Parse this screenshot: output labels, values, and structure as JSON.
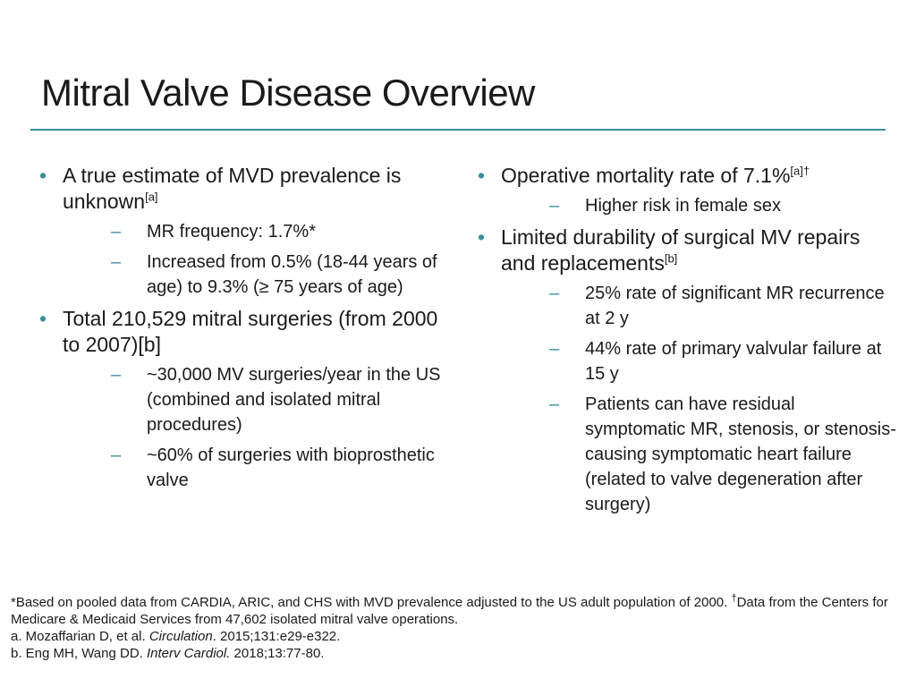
{
  "title": "Mitral Valve Disease Overview",
  "left": {
    "b1_text": "A true estimate of MVD prevalence is unknown",
    "b1_sup": "[a]",
    "b1_sub1": "MR frequency: 1.7%*",
    "b1_sub2": "Increased from 0.5% (18-44 years of age) to 9.3% (≥ 75 years of age)",
    "b2_text": "Total 210,529 mitral surgeries (from 2000 to 2007)[b]",
    "b2_sub1": "~30,000 MV surgeries/year in the US (combined and isolated mitral procedures)",
    "b2_sub2": "~60% of surgeries with bioprosthetic valve"
  },
  "right": {
    "b1_text": "Operative mortality rate of 7.1%",
    "b1_sup": "[a]†",
    "b1_sub1": "Higher risk in female sex",
    "b2_text": "Limited durability of surgical MV repairs and replacements",
    "b2_sup": "[b]",
    "b2_sub1": "25% rate of significant MR recurrence at 2 y",
    "b2_sub2": "44% rate of primary valvular failure at 15 y",
    "b2_sub3": "Patients can have residual symptomatic MR, stenosis, or stenosis-causing symptomatic heart failure (related to valve degeneration after surgery)"
  },
  "footer": {
    "note1_a": "*Based on pooled data from CARDIA, ARIC, and CHS with MVD prevalence adjusted to the US adult population of 2000. ",
    "note1_mark": "†",
    "note1_b": "Data from the Centers for Medicare & Medicaid Services from 47,602 isolated mitral valve operations.",
    "ref_a_authors": "a. Mozaffarian D, et al. ",
    "ref_a_journal": "Circulation",
    "ref_a_rest": ". 2015;131:e29-e322.",
    "ref_b_authors": "b. Eng MH, Wang DD. ",
    "ref_b_journal": "Interv Cardiol.",
    "ref_b_rest": " 2018;13:77-80."
  }
}
